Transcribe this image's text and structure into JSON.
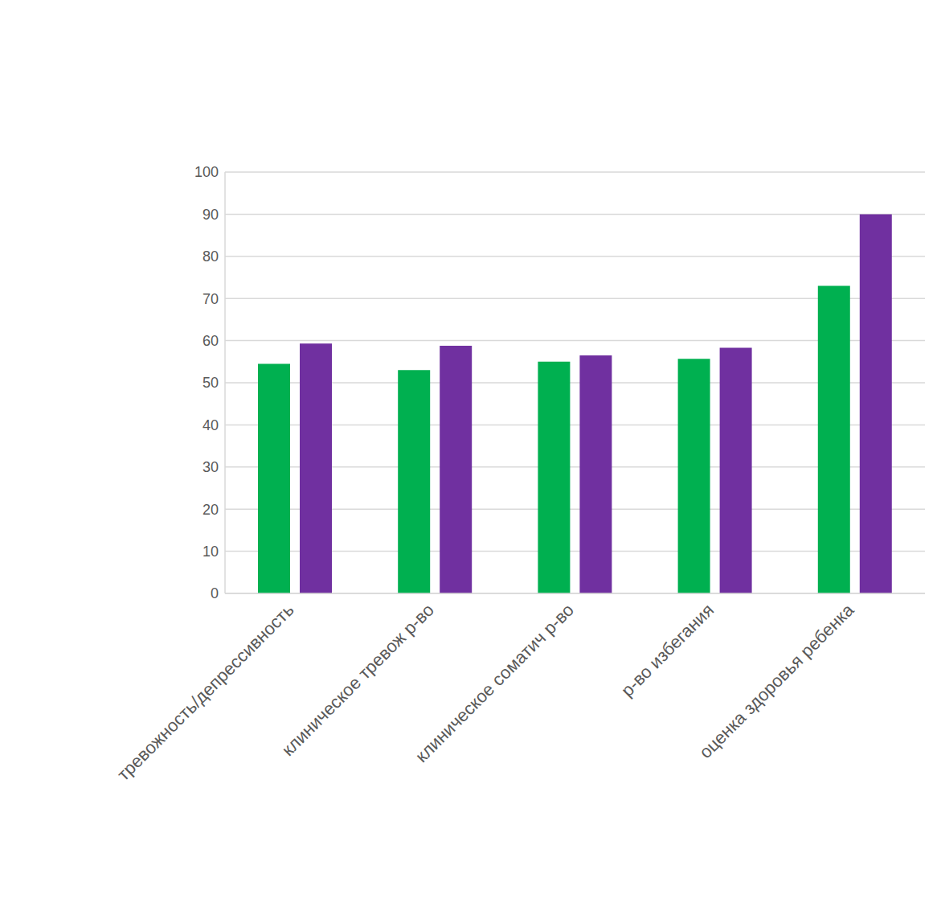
{
  "chart_data": {
    "type": "bar",
    "categories": [
      "тревожность/депрессивность",
      "клиническое тревож р-во",
      "клиническое соматич р-во",
      "р-во избегания",
      "оценка здоровья ребенка"
    ],
    "series": [
      {
        "color": "#00b050",
        "values": [
          54.5,
          53,
          55,
          55.7,
          73
        ]
      },
      {
        "color": "#7030a0",
        "values": [
          59.3,
          58.8,
          56.5,
          58.3,
          90
        ]
      }
    ],
    "ylim": [
      0,
      100
    ],
    "yticks": [
      0,
      10,
      20,
      30,
      40,
      50,
      60,
      70,
      80,
      90,
      100
    ],
    "grid": true
  }
}
